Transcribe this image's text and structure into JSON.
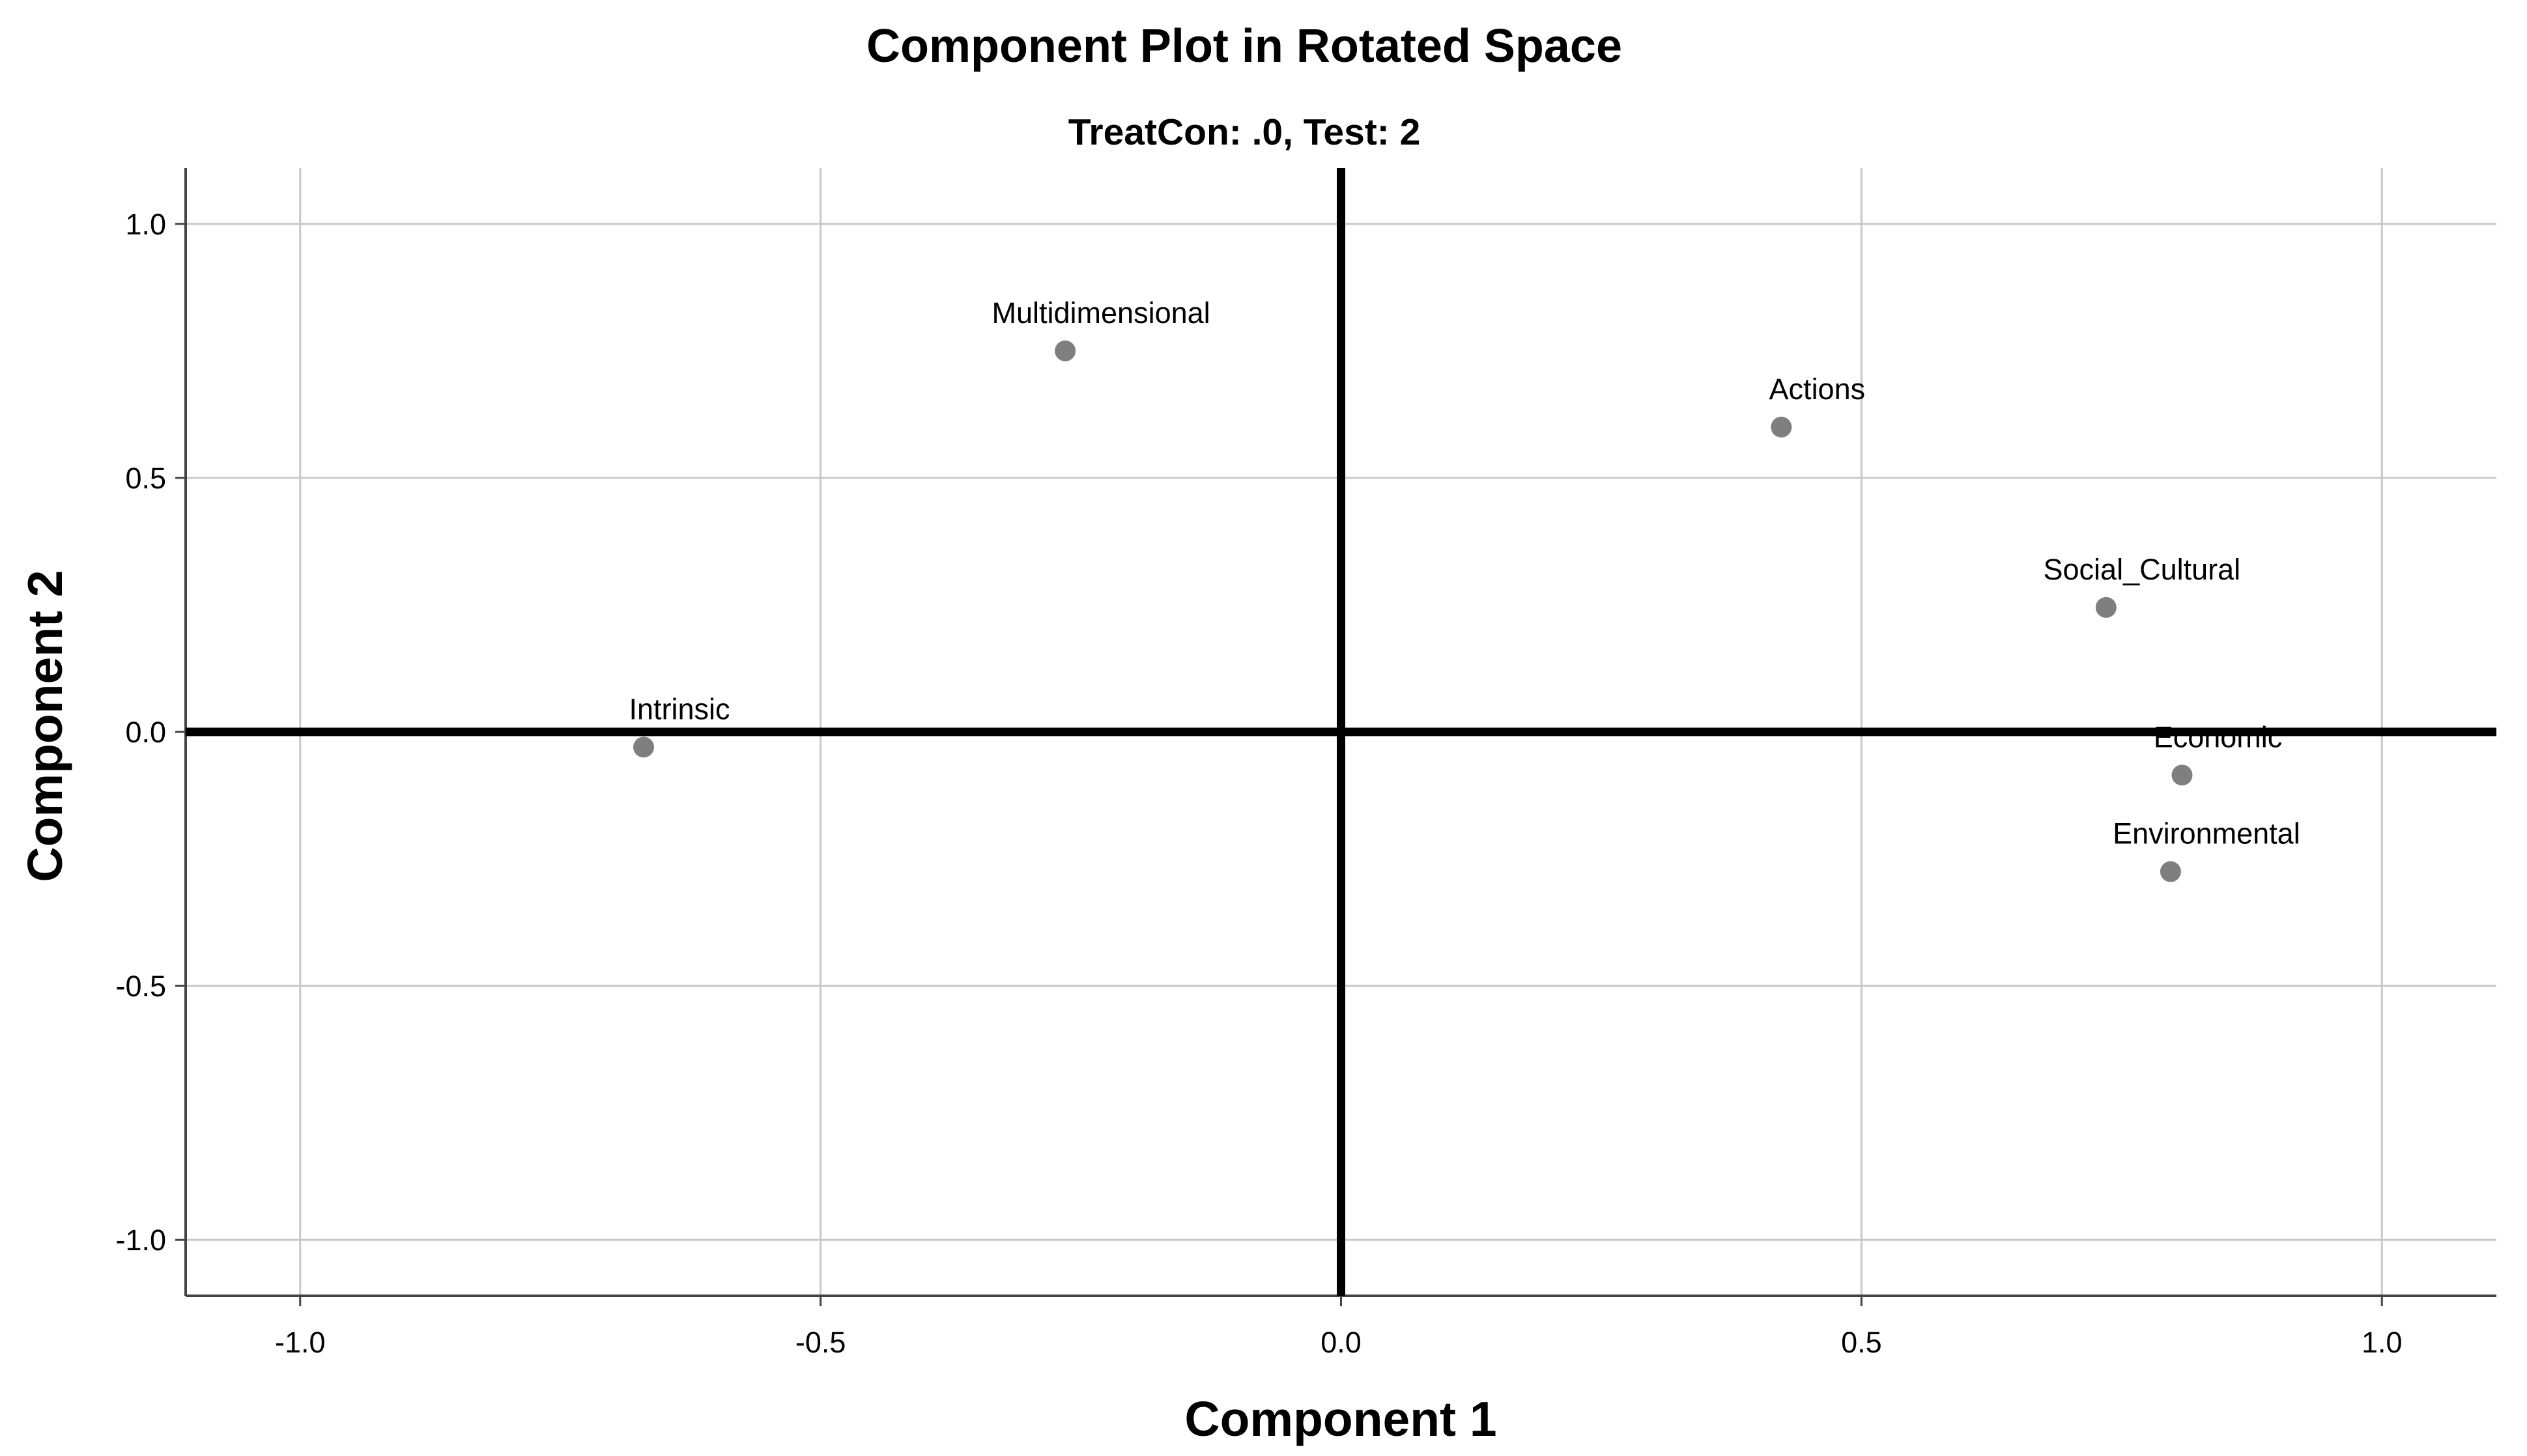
{
  "chart_data": {
    "type": "scatter",
    "title": "Component Plot in Rotated Space",
    "subtitle": "TreatCon: .0, Test: 2",
    "xlabel": "Component 1",
    "ylabel": "Component 2",
    "xlim": [
      -1.11,
      1.11
    ],
    "ylim": [
      -1.11,
      1.11
    ],
    "xticks": [
      -1.0,
      -0.5,
      0.0,
      0.5,
      1.0
    ],
    "yticks": [
      -1.0,
      -0.5,
      0.0,
      0.5,
      1.0
    ],
    "xtick_labels": [
      "-1.0",
      "-0.5",
      "0.0",
      "0.5",
      "1.0"
    ],
    "ytick_labels": [
      "-1.0",
      "-0.5",
      "0.0",
      "0.5",
      "1.0"
    ],
    "grid": true,
    "zero_lines": true,
    "point_color": "#7f7f7f",
    "points": [
      {
        "label": "Multidimensional",
        "x": -0.265,
        "y": 0.75
      },
      {
        "label": "Actions",
        "x": 0.423,
        "y": 0.6
      },
      {
        "label": "Social_Cultural",
        "x": 0.735,
        "y": 0.245
      },
      {
        "label": "Intrinsic",
        "x": -0.67,
        "y": -0.03
      },
      {
        "label": "Economic",
        "x": 0.808,
        "y": -0.085
      },
      {
        "label": "Environmental",
        "x": 0.797,
        "y": -0.275
      }
    ]
  }
}
